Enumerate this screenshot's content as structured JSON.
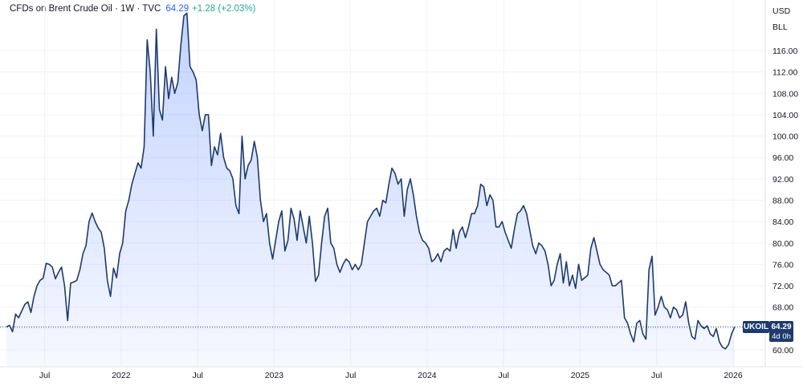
{
  "legend": {
    "symbol": "CFDs on Brent Crude Oil · 1W · TVC",
    "last": "64.29",
    "change": "+1.28 (+2.03%)"
  },
  "axis": {
    "currency": "USD",
    "unit": "BLL"
  },
  "badge": {
    "ticker": "UKOIL",
    "price": "64.29",
    "countdown": "4d 0h"
  },
  "colors": {
    "line": "#1e3a6e",
    "fill": "#2962ff",
    "change": "#26a69a"
  },
  "chart_data": {
    "type": "area",
    "title": "CFDs on Brent Crude Oil · 1W · TVC",
    "ylabel": "USD",
    "ylim": [
      58,
      124
    ],
    "xlim": [
      2021.25,
      2026.08
    ],
    "grid": true,
    "y_ticks": [
      60,
      64,
      68,
      72,
      76,
      80,
      84,
      88,
      92,
      96,
      100,
      104,
      108,
      112,
      116
    ],
    "x_ticks": [
      {
        "x": 2021.5,
        "label": "Jul"
      },
      {
        "x": 2022.0,
        "label": "2022"
      },
      {
        "x": 2022.5,
        "label": "Jul"
      },
      {
        "x": 2023.0,
        "label": "2023"
      },
      {
        "x": 2023.5,
        "label": "Jul"
      },
      {
        "x": 2024.0,
        "label": "2024"
      },
      {
        "x": 2024.5,
        "label": "Jul"
      },
      {
        "x": 2025.0,
        "label": "2025"
      },
      {
        "x": 2025.5,
        "label": "Jul"
      },
      {
        "x": 2026.0,
        "label": "2026"
      }
    ],
    "last_value": 64.29,
    "x": [
      2021.25,
      2021.27,
      2021.29,
      2021.31,
      2021.33,
      2021.35,
      2021.37,
      2021.39,
      2021.41,
      2021.43,
      2021.45,
      2021.47,
      2021.49,
      2021.51,
      2021.53,
      2021.55,
      2021.57,
      2021.59,
      2021.61,
      2021.63,
      2021.65,
      2021.67,
      2021.69,
      2021.71,
      2021.73,
      2021.75,
      2021.77,
      2021.79,
      2021.81,
      2021.83,
      2021.85,
      2021.87,
      2021.89,
      2021.91,
      2021.93,
      2021.95,
      2021.97,
      2021.99,
      2022.01,
      2022.03,
      2022.05,
      2022.07,
      2022.09,
      2022.11,
      2022.13,
      2022.15,
      2022.17,
      2022.19,
      2022.21,
      2022.23,
      2022.25,
      2022.27,
      2022.29,
      2022.31,
      2022.33,
      2022.35,
      2022.37,
      2022.39,
      2022.41,
      2022.43,
      2022.45,
      2022.47,
      2022.49,
      2022.51,
      2022.53,
      2022.55,
      2022.57,
      2022.59,
      2022.61,
      2022.63,
      2022.65,
      2022.67,
      2022.69,
      2022.71,
      2022.73,
      2022.75,
      2022.77,
      2022.79,
      2022.81,
      2022.83,
      2022.85,
      2022.87,
      2022.89,
      2022.91,
      2022.93,
      2022.95,
      2022.97,
      2022.99,
      2023.01,
      2023.03,
      2023.05,
      2023.07,
      2023.09,
      2023.11,
      2023.13,
      2023.15,
      2023.17,
      2023.19,
      2023.21,
      2023.23,
      2023.25,
      2023.27,
      2023.29,
      2023.31,
      2023.33,
      2023.35,
      2023.37,
      2023.39,
      2023.41,
      2023.43,
      2023.45,
      2023.47,
      2023.49,
      2023.51,
      2023.53,
      2023.55,
      2023.57,
      2023.59,
      2023.61,
      2023.63,
      2023.65,
      2023.67,
      2023.69,
      2023.71,
      2023.73,
      2023.75,
      2023.77,
      2023.79,
      2023.81,
      2023.83,
      2023.85,
      2023.87,
      2023.89,
      2023.91,
      2023.93,
      2023.95,
      2023.97,
      2023.99,
      2024.01,
      2024.03,
      2024.05,
      2024.07,
      2024.09,
      2024.11,
      2024.13,
      2024.15,
      2024.17,
      2024.19,
      2024.21,
      2024.23,
      2024.25,
      2024.27,
      2024.29,
      2024.31,
      2024.33,
      2024.35,
      2024.37,
      2024.39,
      2024.41,
      2024.43,
      2024.45,
      2024.47,
      2024.49,
      2024.51,
      2024.53,
      2024.55,
      2024.57,
      2024.59,
      2024.61,
      2024.63,
      2024.65,
      2024.67,
      2024.69,
      2024.71,
      2024.73,
      2024.75,
      2024.77,
      2024.79,
      2024.81,
      2024.83,
      2024.85,
      2024.87,
      2024.89,
      2024.91,
      2024.93,
      2024.95,
      2024.97,
      2024.99,
      2025.01,
      2025.03,
      2025.05,
      2025.07,
      2025.09,
      2025.11,
      2025.13,
      2025.15,
      2025.17,
      2025.19,
      2025.21,
      2025.23,
      2025.25,
      2025.27,
      2025.29,
      2025.31,
      2025.33,
      2025.35,
      2025.37,
      2025.39,
      2025.41,
      2025.43,
      2025.45,
      2025.47,
      2025.49,
      2025.51,
      2025.53,
      2025.55,
      2025.57,
      2025.59,
      2025.61,
      2025.63,
      2025.65,
      2025.67,
      2025.69,
      2025.71,
      2025.73,
      2025.75,
      2025.77,
      2025.79,
      2025.81,
      2025.83,
      2025.85,
      2025.87,
      2025.89,
      2025.91,
      2025.93,
      2025.95,
      2025.97,
      2025.99,
      2026.01
    ],
    "y": [
      64.3,
      64.6,
      63.4,
      66.7,
      66.0,
      67.3,
      68.5,
      69.0,
      67.0,
      70.0,
      72.0,
      73.0,
      73.4,
      76.2,
      76.0,
      75.5,
      73.3,
      74.5,
      75.5,
      72.0,
      65.5,
      72.5,
      72.7,
      73.0,
      75.0,
      78.0,
      79.5,
      84.0,
      85.6,
      84.0,
      82.8,
      82.0,
      79.0,
      73.0,
      70.0,
      75.3,
      73.5,
      78.0,
      80.0,
      86.0,
      88.0,
      91.0,
      93.0,
      95.0,
      94.0,
      98.0,
      118.0,
      112.0,
      100.0,
      120.0,
      105.0,
      103.0,
      113.0,
      107.0,
      111.0,
      108.0,
      110.0,
      117.0,
      122.5,
      123.0,
      113.0,
      112.0,
      110.5,
      104.0,
      101.0,
      104.0,
      104.0,
      94.5,
      98.0,
      96.5,
      100.5,
      96.0,
      94.0,
      93.5,
      92.0,
      87.0,
      85.5,
      100.0,
      92.0,
      94.5,
      95.5,
      99.0,
      96.0,
      88.0,
      84.0,
      85.5,
      80.0,
      77.0,
      80.5,
      84.0,
      86.0,
      78.5,
      80.5,
      86.5,
      84.5,
      80.5,
      86.0,
      83.0,
      80.0,
      85.0,
      80.0,
      72.8,
      74.0,
      80.0,
      85.0,
      86.5,
      80.0,
      79.0,
      76.0,
      74.5,
      76.0,
      77.0,
      76.5,
      75.0,
      76.0,
      75.0,
      76.0,
      80.0,
      84.0,
      85.0,
      86.0,
      86.5,
      85.0,
      88.0,
      87.5,
      91.0,
      94.0,
      93.0,
      91.0,
      92.0,
      85.0,
      90.0,
      92.0,
      89.0,
      85.0,
      82.0,
      80.5,
      80.0,
      79.0,
      76.5,
      77.0,
      78.0,
      76.5,
      78.5,
      79.0,
      78.5,
      82.5,
      79.0,
      82.0,
      83.0,
      81.0,
      83.0,
      85.5,
      85.5,
      87.0,
      91.0,
      90.5,
      87.0,
      89.0,
      88.0,
      83.0,
      83.0,
      84.0,
      82.0,
      80.5,
      79.0,
      82.5,
      85.5,
      86.0,
      87.0,
      85.5,
      82.5,
      79.5,
      78.0,
      80.0,
      79.5,
      78.5,
      76.0,
      72.0,
      73.0,
      76.0,
      78.0,
      72.5,
      76.5,
      72.0,
      74.0,
      71.5,
      76.0,
      73.0,
      73.5,
      74.0,
      79.0,
      81.0,
      78.5,
      76.0,
      75.0,
      74.5,
      74.0,
      72.0,
      72.0,
      72.5,
      73.0,
      66.0,
      65.0,
      63.0,
      61.5,
      65.0,
      65.5,
      63.0,
      62.0,
      75.0,
      77.5,
      66.5,
      68.0,
      70.0,
      68.0,
      67.5,
      66.0,
      68.0,
      67.5,
      66.0,
      66.5,
      69.0,
      65.0,
      62.5,
      62.0,
      65.5,
      64.5,
      64.0,
      64.5,
      63.0,
      62.5,
      64.0,
      61.5,
      60.5,
      60.2,
      61.0,
      63.0,
      64.3
    ]
  }
}
